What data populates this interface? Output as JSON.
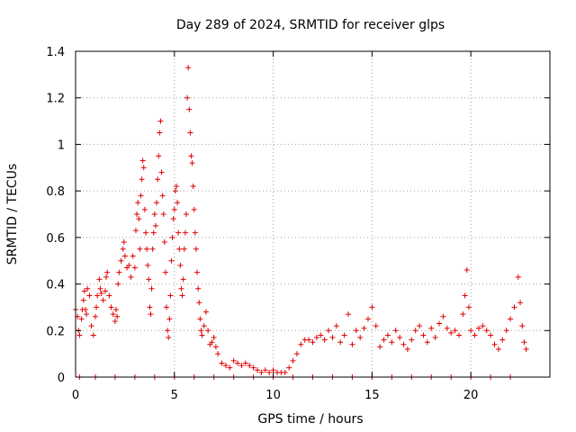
{
  "chart_data": {
    "type": "scatter",
    "title": "Day 289 of 2024, SRMTID for receiver glps",
    "xlabel": "GPS time / hours",
    "ylabel": "SRMTID / TECUs",
    "xlim": [
      0,
      24
    ],
    "ylim": [
      0,
      1.4
    ],
    "xticks": [
      0,
      5,
      10,
      15,
      20
    ],
    "xtick_labels": [
      "0",
      "5",
      "10",
      "15",
      "20"
    ],
    "yticks": [
      0,
      0.2,
      0.4,
      0.6,
      0.8,
      1.0,
      1.2,
      1.4
    ],
    "ytick_labels": [
      "0",
      "0.2",
      "0.4",
      "0.6",
      "0.8",
      "1",
      "1.2",
      "1.4"
    ],
    "grid": true,
    "legend": "none",
    "marker": "plus",
    "color": "#e00000",
    "series": [
      {
        "name": "SRMTID",
        "points": [
          [
            0.0,
            0.29
          ],
          [
            0.1,
            0.26
          ],
          [
            0.15,
            0.2
          ],
          [
            0.2,
            0.18
          ],
          [
            0.3,
            0.25
          ],
          [
            0.35,
            0.29
          ],
          [
            0.4,
            0.33
          ],
          [
            0.45,
            0.37
          ],
          [
            0.5,
            0.29
          ],
          [
            0.55,
            0.27
          ],
          [
            0.6,
            0.38
          ],
          [
            0.7,
            0.35
          ],
          [
            0.8,
            0.22
          ],
          [
            0.9,
            0.18
          ],
          [
            1.0,
            0.26
          ],
          [
            1.05,
            0.3
          ],
          [
            1.1,
            0.35
          ],
          [
            1.2,
            0.42
          ],
          [
            1.25,
            0.38
          ],
          [
            1.3,
            0.36
          ],
          [
            1.4,
            0.33
          ],
          [
            1.5,
            0.37
          ],
          [
            1.55,
            0.43
          ],
          [
            1.6,
            0.45
          ],
          [
            1.7,
            0.35
          ],
          [
            1.8,
            0.3
          ],
          [
            1.9,
            0.27
          ],
          [
            2.0,
            0.24
          ],
          [
            2.05,
            0.29
          ],
          [
            2.1,
            0.26
          ],
          [
            2.15,
            0.4
          ],
          [
            2.2,
            0.45
          ],
          [
            2.3,
            0.5
          ],
          [
            2.4,
            0.55
          ],
          [
            2.45,
            0.58
          ],
          [
            2.5,
            0.52
          ],
          [
            2.6,
            0.47
          ],
          [
            2.7,
            0.48
          ],
          [
            2.8,
            0.43
          ],
          [
            2.9,
            0.52
          ],
          [
            3.0,
            0.47
          ],
          [
            3.05,
            0.63
          ],
          [
            3.1,
            0.7
          ],
          [
            3.15,
            0.75
          ],
          [
            3.2,
            0.68
          ],
          [
            3.25,
            0.55
          ],
          [
            3.3,
            0.78
          ],
          [
            3.35,
            0.85
          ],
          [
            3.4,
            0.93
          ],
          [
            3.45,
            0.9
          ],
          [
            3.5,
            0.72
          ],
          [
            3.55,
            0.62
          ],
          [
            3.6,
            0.55
          ],
          [
            3.65,
            0.48
          ],
          [
            3.7,
            0.42
          ],
          [
            3.75,
            0.3
          ],
          [
            3.8,
            0.27
          ],
          [
            3.85,
            0.38
          ],
          [
            3.9,
            0.55
          ],
          [
            3.95,
            0.62
          ],
          [
            4.0,
            0.7
          ],
          [
            4.05,
            0.65
          ],
          [
            4.1,
            0.75
          ],
          [
            4.15,
            0.85
          ],
          [
            4.2,
            0.95
          ],
          [
            4.25,
            1.05
          ],
          [
            4.3,
            1.1
          ],
          [
            4.35,
            0.88
          ],
          [
            4.4,
            0.78
          ],
          [
            4.45,
            0.7
          ],
          [
            4.5,
            0.58
          ],
          [
            4.55,
            0.45
          ],
          [
            4.6,
            0.3
          ],
          [
            4.65,
            0.2
          ],
          [
            4.7,
            0.17
          ],
          [
            4.75,
            0.25
          ],
          [
            4.8,
            0.35
          ],
          [
            4.85,
            0.5
          ],
          [
            4.9,
            0.6
          ],
          [
            4.95,
            0.68
          ],
          [
            5.0,
            0.72
          ],
          [
            5.05,
            0.8
          ],
          [
            5.1,
            0.82
          ],
          [
            5.15,
            0.75
          ],
          [
            5.2,
            0.62
          ],
          [
            5.25,
            0.55
          ],
          [
            5.3,
            0.48
          ],
          [
            5.35,
            0.38
          ],
          [
            5.4,
            0.35
          ],
          [
            5.45,
            0.42
          ],
          [
            5.5,
            0.55
          ],
          [
            5.55,
            0.62
          ],
          [
            5.6,
            0.7
          ],
          [
            5.65,
            1.2
          ],
          [
            5.7,
            1.33
          ],
          [
            5.75,
            1.15
          ],
          [
            5.8,
            1.05
          ],
          [
            5.85,
            0.95
          ],
          [
            5.9,
            0.92
          ],
          [
            5.95,
            0.82
          ],
          [
            6.0,
            0.72
          ],
          [
            6.05,
            0.62
          ],
          [
            6.1,
            0.55
          ],
          [
            6.15,
            0.45
          ],
          [
            6.2,
            0.38
          ],
          [
            6.25,
            0.32
          ],
          [
            6.3,
            0.25
          ],
          [
            6.35,
            0.2
          ],
          [
            6.4,
            0.18
          ],
          [
            6.5,
            0.22
          ],
          [
            6.6,
            0.28
          ],
          [
            6.7,
            0.2
          ],
          [
            6.8,
            0.14
          ],
          [
            6.9,
            0.15
          ],
          [
            7.0,
            0.17
          ],
          [
            7.1,
            0.13
          ],
          [
            7.2,
            0.1
          ],
          [
            7.4,
            0.06
          ],
          [
            7.6,
            0.05
          ],
          [
            7.8,
            0.04
          ],
          [
            8.0,
            0.07
          ],
          [
            8.2,
            0.06
          ],
          [
            8.4,
            0.05
          ],
          [
            8.6,
            0.06
          ],
          [
            8.8,
            0.05
          ],
          [
            9.0,
            0.04
          ],
          [
            9.2,
            0.03
          ],
          [
            9.4,
            0.02
          ],
          [
            9.6,
            0.03
          ],
          [
            9.8,
            0.02
          ],
          [
            10.0,
            0.03
          ],
          [
            10.2,
            0.02
          ],
          [
            10.4,
            0.02
          ],
          [
            10.6,
            0.02
          ],
          [
            10.8,
            0.04
          ],
          [
            11.0,
            0.07
          ],
          [
            11.2,
            0.1
          ],
          [
            11.4,
            0.14
          ],
          [
            11.6,
            0.16
          ],
          [
            11.8,
            0.16
          ],
          [
            12.0,
            0.15
          ],
          [
            12.2,
            0.17
          ],
          [
            12.4,
            0.18
          ],
          [
            12.6,
            0.16
          ],
          [
            12.8,
            0.2
          ],
          [
            13.0,
            0.17
          ],
          [
            13.2,
            0.22
          ],
          [
            13.4,
            0.15
          ],
          [
            13.6,
            0.18
          ],
          [
            13.8,
            0.27
          ],
          [
            14.0,
            0.14
          ],
          [
            14.2,
            0.2
          ],
          [
            14.4,
            0.17
          ],
          [
            14.6,
            0.21
          ],
          [
            14.8,
            0.25
          ],
          [
            15.0,
            0.3
          ],
          [
            15.2,
            0.22
          ],
          [
            15.4,
            0.13
          ],
          [
            15.6,
            0.16
          ],
          [
            15.8,
            0.18
          ],
          [
            16.0,
            0.15
          ],
          [
            16.2,
            0.2
          ],
          [
            16.4,
            0.17
          ],
          [
            16.6,
            0.14
          ],
          [
            16.8,
            0.12
          ],
          [
            17.0,
            0.16
          ],
          [
            17.2,
            0.2
          ],
          [
            17.4,
            0.22
          ],
          [
            17.6,
            0.18
          ],
          [
            17.8,
            0.15
          ],
          [
            18.0,
            0.21
          ],
          [
            18.2,
            0.17
          ],
          [
            18.4,
            0.23
          ],
          [
            18.6,
            0.26
          ],
          [
            18.8,
            0.21
          ],
          [
            19.0,
            0.19
          ],
          [
            19.2,
            0.2
          ],
          [
            19.4,
            0.18
          ],
          [
            19.6,
            0.27
          ],
          [
            19.7,
            0.35
          ],
          [
            19.8,
            0.46
          ],
          [
            19.9,
            0.3
          ],
          [
            20.0,
            0.2
          ],
          [
            20.2,
            0.18
          ],
          [
            20.4,
            0.21
          ],
          [
            20.6,
            0.22
          ],
          [
            20.8,
            0.2
          ],
          [
            21.0,
            0.18
          ],
          [
            21.2,
            0.14
          ],
          [
            21.4,
            0.12
          ],
          [
            21.6,
            0.16
          ],
          [
            21.8,
            0.2
          ],
          [
            22.0,
            0.25
          ],
          [
            22.2,
            0.3
          ],
          [
            22.4,
            0.43
          ],
          [
            22.5,
            0.32
          ],
          [
            22.6,
            0.22
          ],
          [
            22.7,
            0.15
          ],
          [
            22.8,
            0.12
          ],
          [
            0.2,
            0.0
          ],
          [
            1.0,
            0.0
          ],
          [
            2.0,
            0.0
          ],
          [
            3.0,
            0.0
          ],
          [
            4.0,
            0.0
          ],
          [
            5.0,
            0.0
          ],
          [
            6.0,
            0.0
          ],
          [
            7.0,
            0.0
          ],
          [
            8.0,
            0.0
          ],
          [
            9.0,
            0.0
          ],
          [
            10.0,
            0.0
          ],
          [
            11.0,
            0.0
          ],
          [
            12.0,
            0.0
          ],
          [
            13.0,
            0.0
          ],
          [
            14.0,
            0.0
          ],
          [
            15.0,
            0.0
          ],
          [
            16.0,
            0.0
          ],
          [
            17.0,
            0.0
          ],
          [
            18.0,
            0.0
          ],
          [
            19.0,
            0.0
          ],
          [
            20.0,
            0.0
          ],
          [
            21.0,
            0.0
          ],
          [
            22.0,
            0.0
          ]
        ]
      }
    ]
  }
}
